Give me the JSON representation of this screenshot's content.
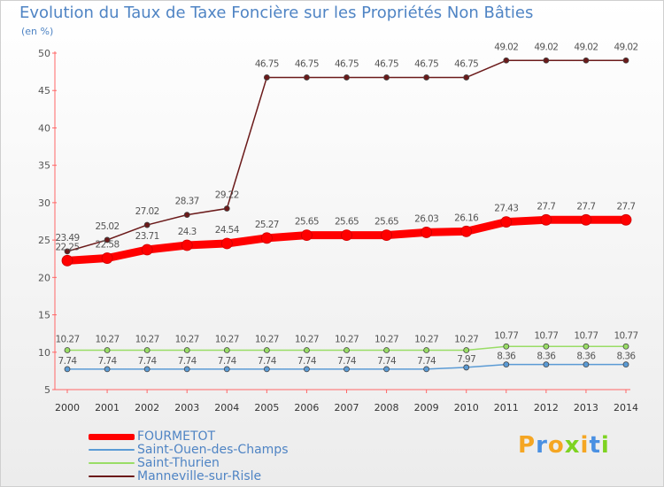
{
  "chart_data": {
    "type": "line",
    "title": "Evolution du Taux de Taxe Foncière sur les Propriétés Non Bâties",
    "ylabel": "(en %)",
    "xlabel": "",
    "ylim": [
      5,
      50
    ],
    "y_ticks": [
      5,
      10,
      15,
      20,
      25,
      30,
      35,
      40,
      45,
      50
    ],
    "categories": [
      "2000",
      "2001",
      "2002",
      "2003",
      "2004",
      "2005",
      "2006",
      "2007",
      "2008",
      "2009",
      "2010",
      "2011",
      "2012",
      "2013",
      "2014"
    ],
    "series": [
      {
        "name": "FOURMETOT",
        "color": "#ff0000",
        "values": [
          22.25,
          22.58,
          23.71,
          24.3,
          24.54,
          25.27,
          25.65,
          25.65,
          25.65,
          26.03,
          26.16,
          27.43,
          27.7,
          27.7,
          27.7
        ],
        "labels": [
          "22.25",
          "22.58",
          "23.71",
          "24.3",
          "24.54",
          "25.27",
          "25.65",
          "25.65",
          "25.65",
          "26.03",
          "26.16",
          "27.43",
          "27.7",
          "27.7",
          "27.7"
        ]
      },
      {
        "name": "Saint-Ouen-des-Champs",
        "color": "#5b9bd5",
        "values": [
          7.74,
          7.74,
          7.74,
          7.74,
          7.74,
          7.74,
          7.74,
          7.74,
          7.74,
          7.74,
          7.97,
          8.36,
          8.36,
          8.36,
          8.36
        ],
        "labels": [
          "7.74",
          "7.74",
          "7.74",
          "7.74",
          "7.74",
          "7.74",
          "7.74",
          "7.74",
          "7.74",
          "7.74",
          "7.97",
          "8.36",
          "8.36",
          "8.36",
          "8.36"
        ]
      },
      {
        "name": "Saint-Thurien",
        "color": "#99dd66",
        "values": [
          10.27,
          10.27,
          10.27,
          10.27,
          10.27,
          10.27,
          10.27,
          10.27,
          10.27,
          10.27,
          10.27,
          10.77,
          10.77,
          10.77,
          10.77
        ],
        "labels": [
          "10.27",
          "10.27",
          "10.27",
          "10.27",
          "10.27",
          "10.27",
          "10.27",
          "10.27",
          "10.27",
          "10.27",
          "10.27",
          "10.77",
          "10.77",
          "10.77",
          "10.77"
        ]
      },
      {
        "name": "Manneville-sur-Risle",
        "color": "#6b1a1a",
        "values": [
          23.49,
          25.02,
          27.02,
          28.37,
          29.22,
          46.75,
          46.75,
          46.75,
          46.75,
          46.75,
          46.75,
          49.02,
          49.02,
          49.02,
          49.02
        ],
        "labels": [
          "23.49",
          "25.02",
          "27.02",
          "28.37",
          "29.22",
          "46.75",
          "46.75",
          "46.75",
          "46.75",
          "46.75",
          "46.75",
          "49.02",
          "49.02",
          "49.02",
          "49.02"
        ]
      }
    ]
  },
  "legend": {
    "items": [
      "FOURMETOT",
      "Saint-Ouen-des-Champs",
      "Saint-Thurien",
      "Manneville-sur-Risle"
    ]
  },
  "logo": {
    "text": "Proxiti"
  }
}
